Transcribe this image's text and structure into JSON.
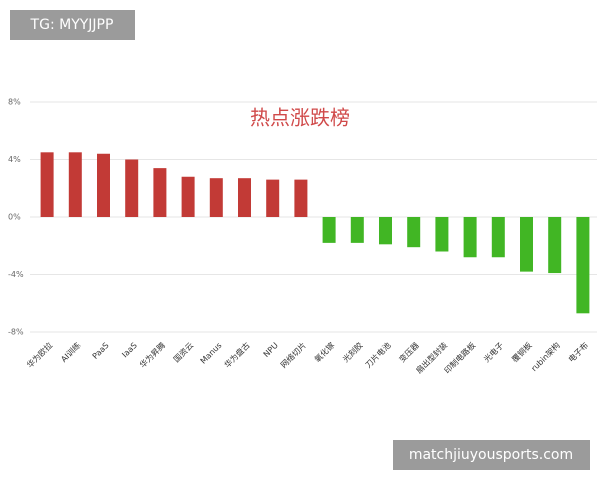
{
  "watermark_top": "TG: MYYJJPP",
  "watermark_bottom": "matchjiuyousports.com",
  "chart_data": {
    "type": "bar",
    "title": "热点涨跌榜",
    "categories": [
      "华为欧拉",
      "AI训练",
      "PaaS",
      "IaaS",
      "华为昇腾",
      "国资云",
      "Manus",
      "华为盘古",
      "NPU",
      "网络切片",
      "氧化镓",
      "光刻胶",
      "刀片电池",
      "变压器",
      "扇出型封装",
      "印制电路板",
      "光电子",
      "覆铜板",
      "rubin架构",
      "电子布"
    ],
    "values": [
      4.5,
      4.5,
      4.4,
      4.0,
      3.4,
      2.8,
      2.7,
      2.7,
      2.6,
      2.6,
      -1.8,
      -1.8,
      -1.9,
      -2.1,
      -2.4,
      -2.8,
      -2.8,
      -3.8,
      -3.9,
      -6.7
    ],
    "positive_color": "#c23a36",
    "negative_color": "#41b624",
    "ylim": [
      -8,
      8
    ],
    "yticks": [
      {
        "value": -8,
        "label": "-8%"
      },
      {
        "value": -4,
        "label": "-4%"
      },
      {
        "value": 0,
        "label": "0%"
      },
      {
        "value": 4,
        "label": "4%"
      },
      {
        "value": 8,
        "label": "8%"
      }
    ],
    "grid": true
  }
}
